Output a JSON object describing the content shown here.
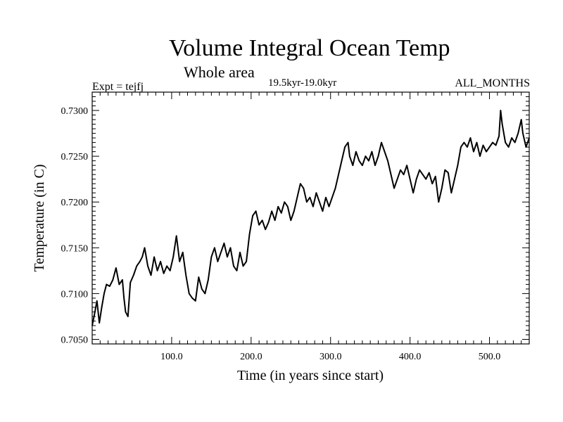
{
  "header": {
    "title": "Volume Integral Ocean Temp",
    "subtitle": "Whole area",
    "period": "19.5kyr-19.0kyr",
    "experiment": "Expt = tejfj",
    "months": "ALL_MONTHS"
  },
  "chart_data": {
    "type": "line",
    "title": "Volume Integral Ocean Temp",
    "xlabel": "Time (in years since start)",
    "ylabel": "Temperature (in C)",
    "xlim": [
      0,
      550
    ],
    "ylim": [
      0.7045,
      0.732
    ],
    "x_ticks": [
      100,
      200,
      300,
      400,
      500
    ],
    "x_tick_labels": [
      "100.0",
      "200.0",
      "300.0",
      "400.0",
      "500.0"
    ],
    "y_ticks": [
      0.705,
      0.71,
      0.715,
      0.72,
      0.725,
      0.73
    ],
    "y_tick_labels": [
      "0.7050",
      "0.7100",
      "0.7150",
      "0.7200",
      "0.7250",
      "0.7300"
    ],
    "grid": false,
    "line_color": "#000000",
    "series": [
      {
        "name": "Volume Integral Ocean Temp",
        "x": [
          0,
          3,
          6,
          9,
          12,
          15,
          18,
          22,
          26,
          30,
          34,
          38,
          40,
          42,
          45,
          48,
          52,
          56,
          60,
          63,
          66,
          70,
          74,
          78,
          82,
          86,
          90,
          94,
          98,
          102,
          106,
          110,
          114,
          118,
          120,
          122,
          126,
          130,
          134,
          138,
          142,
          146,
          150,
          154,
          158,
          162,
          166,
          170,
          174,
          178,
          182,
          186,
          190,
          194,
          198,
          202,
          206,
          210,
          214,
          218,
          222,
          226,
          230,
          234,
          238,
          242,
          246,
          250,
          254,
          258,
          262,
          266,
          270,
          274,
          278,
          282,
          286,
          290,
          294,
          298,
          302,
          306,
          310,
          314,
          318,
          322,
          324,
          328,
          332,
          336,
          340,
          344,
          348,
          352,
          356,
          360,
          364,
          368,
          372,
          376,
          380,
          384,
          388,
          392,
          396,
          400,
          404,
          408,
          412,
          416,
          420,
          424,
          428,
          432,
          436,
          440,
          444,
          448,
          452,
          456,
          460,
          464,
          468,
          472,
          476,
          480,
          484,
          488,
          492,
          496,
          500,
          504,
          508,
          512,
          514,
          516,
          520,
          524,
          528,
          532,
          536,
          540,
          542,
          546,
          550
        ],
        "values": [
          0.7065,
          0.7078,
          0.7092,
          0.7068,
          0.7085,
          0.71,
          0.711,
          0.7108,
          0.7115,
          0.7128,
          0.711,
          0.7115,
          0.7095,
          0.708,
          0.7075,
          0.7112,
          0.712,
          0.713,
          0.7135,
          0.714,
          0.715,
          0.713,
          0.712,
          0.714,
          0.7125,
          0.7135,
          0.7122,
          0.713,
          0.7125,
          0.714,
          0.7163,
          0.7135,
          0.7145,
          0.712,
          0.711,
          0.71,
          0.7095,
          0.7092,
          0.7118,
          0.7105,
          0.71,
          0.7115,
          0.714,
          0.715,
          0.7135,
          0.7145,
          0.7155,
          0.714,
          0.715,
          0.713,
          0.7125,
          0.7145,
          0.713,
          0.7135,
          0.7165,
          0.7185,
          0.719,
          0.7175,
          0.718,
          0.717,
          0.7178,
          0.719,
          0.718,
          0.7195,
          0.7188,
          0.72,
          0.7195,
          0.718,
          0.719,
          0.7205,
          0.722,
          0.7215,
          0.72,
          0.7205,
          0.7195,
          0.721,
          0.72,
          0.719,
          0.7205,
          0.7195,
          0.7205,
          0.7215,
          0.723,
          0.7245,
          0.726,
          0.7265,
          0.725,
          0.724,
          0.7255,
          0.7245,
          0.724,
          0.725,
          0.7245,
          0.7255,
          0.724,
          0.725,
          0.7265,
          0.7255,
          0.7245,
          0.723,
          0.7215,
          0.7225,
          0.7235,
          0.723,
          0.724,
          0.7225,
          0.721,
          0.7225,
          0.7235,
          0.723,
          0.7225,
          0.7232,
          0.722,
          0.7228,
          0.72,
          0.7215,
          0.7235,
          0.7232,
          0.721,
          0.7225,
          0.724,
          0.726,
          0.7265,
          0.726,
          0.727,
          0.7255,
          0.7265,
          0.725,
          0.7262,
          0.7255,
          0.726,
          0.7265,
          0.7262,
          0.7272,
          0.73,
          0.7285,
          0.7265,
          0.726,
          0.727,
          0.7265,
          0.7275,
          0.729,
          0.7275,
          0.726,
          0.727
        ]
      }
    ]
  }
}
